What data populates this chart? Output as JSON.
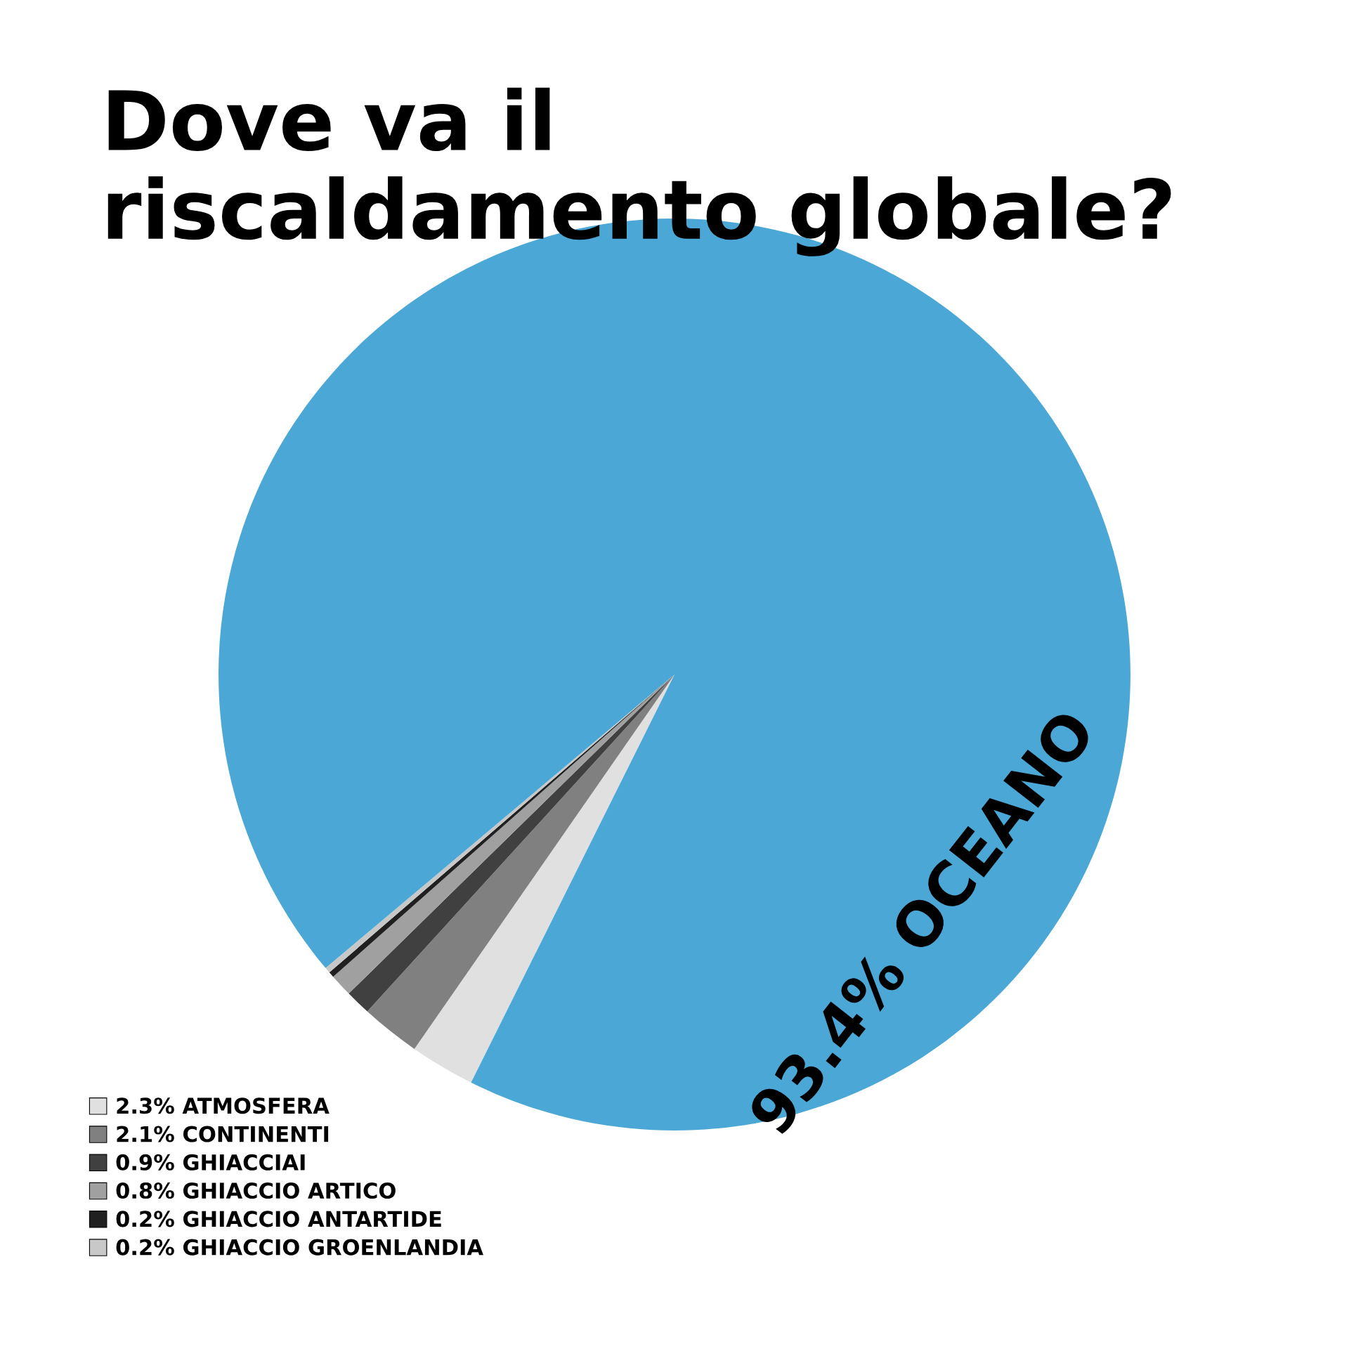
{
  "chart_data": {
    "type": "pie",
    "title": "Dove va il\nriscaldamento globale?",
    "categories": [
      "2.3% ATMOSFERA",
      "2.1% CONTINENTI",
      "0.9% GHIACCIAI",
      "0.8% GHIACCIO ARTICO",
      "0.2% GHIACCIO ANTARTIDE",
      "0.2% GHIACCIO GROENLANDIA",
      "93.4% OCEANO"
    ],
    "values": [
      2.3,
      2.1,
      0.9,
      0.8,
      0.2,
      0.2,
      93.4
    ],
    "legend": "bottom left",
    "colors": [
      "#e0e0e0",
      "#808080",
      "#404040",
      "#a0a0a0",
      "#202020",
      "#c8c8c8",
      "#4ba8d6"
    ]
  }
}
